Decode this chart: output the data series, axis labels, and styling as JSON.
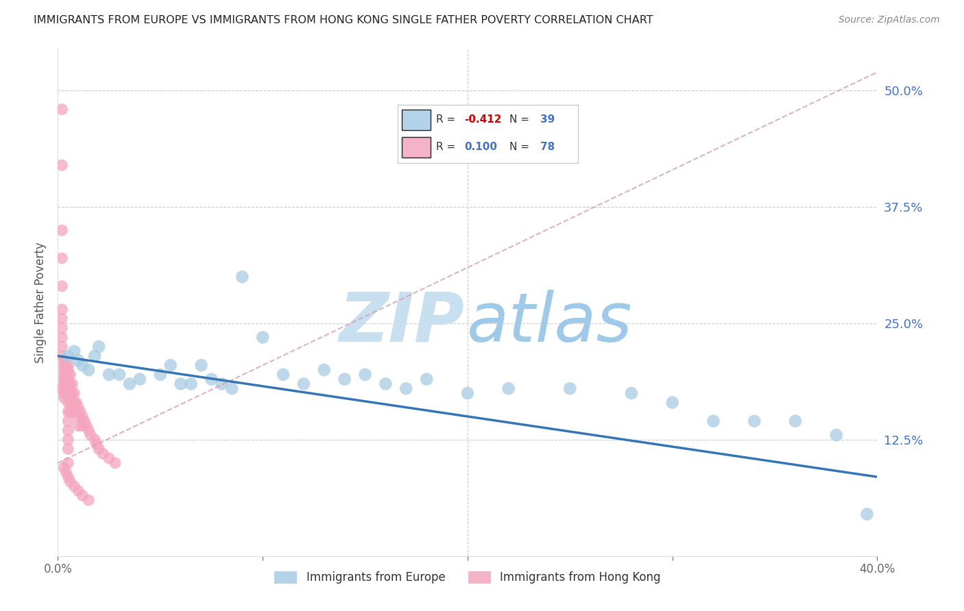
{
  "title": "IMMIGRANTS FROM EUROPE VS IMMIGRANTS FROM HONG KONG SINGLE FATHER POVERTY CORRELATION CHART",
  "source": "Source: ZipAtlas.com",
  "ylabel": "Single Father Poverty",
  "ytick_labels": [
    "50.0%",
    "37.5%",
    "25.0%",
    "12.5%"
  ],
  "ytick_values": [
    0.5,
    0.375,
    0.25,
    0.125
  ],
  "xlim": [
    0.0,
    0.4
  ],
  "ylim": [
    0.0,
    0.545
  ],
  "legend_r_blue": "-0.412",
  "legend_n_blue": "39",
  "legend_r_pink": "0.100",
  "legend_n_pink": "78",
  "blue_color": "#a8cce4",
  "pink_color": "#f4a6be",
  "trend_blue_color": "#3575b5",
  "trend_pink_color": "#e8a0b0",
  "label_blue": "Immigrants from Europe",
  "label_pink": "Immigrants from Hong Kong",
  "blue_x": [
    0.005,
    0.008,
    0.01,
    0.012,
    0.015,
    0.018,
    0.02,
    0.025,
    0.03,
    0.035,
    0.04,
    0.05,
    0.055,
    0.06,
    0.065,
    0.07,
    0.075,
    0.08,
    0.085,
    0.09,
    0.1,
    0.11,
    0.12,
    0.13,
    0.14,
    0.15,
    0.16,
    0.17,
    0.18,
    0.2,
    0.22,
    0.25,
    0.28,
    0.3,
    0.32,
    0.34,
    0.36,
    0.38,
    0.395
  ],
  "blue_y": [
    0.215,
    0.22,
    0.21,
    0.205,
    0.2,
    0.215,
    0.225,
    0.195,
    0.195,
    0.185,
    0.19,
    0.195,
    0.205,
    0.185,
    0.185,
    0.205,
    0.19,
    0.185,
    0.18,
    0.3,
    0.235,
    0.195,
    0.185,
    0.2,
    0.19,
    0.195,
    0.185,
    0.18,
    0.19,
    0.175,
    0.18,
    0.18,
    0.175,
    0.165,
    0.145,
    0.145,
    0.145,
    0.13,
    0.045
  ],
  "pink_x": [
    0.002,
    0.002,
    0.002,
    0.002,
    0.002,
    0.002,
    0.002,
    0.002,
    0.002,
    0.002,
    0.002,
    0.002,
    0.003,
    0.003,
    0.003,
    0.003,
    0.003,
    0.003,
    0.003,
    0.003,
    0.004,
    0.004,
    0.004,
    0.004,
    0.004,
    0.004,
    0.004,
    0.005,
    0.005,
    0.005,
    0.005,
    0.005,
    0.005,
    0.005,
    0.005,
    0.005,
    0.005,
    0.005,
    0.005,
    0.005,
    0.006,
    0.006,
    0.006,
    0.006,
    0.006,
    0.007,
    0.007,
    0.007,
    0.007,
    0.008,
    0.008,
    0.008,
    0.009,
    0.009,
    0.01,
    0.01,
    0.01,
    0.011,
    0.012,
    0.012,
    0.013,
    0.014,
    0.015,
    0.016,
    0.018,
    0.019,
    0.02,
    0.022,
    0.025,
    0.028,
    0.003,
    0.004,
    0.005,
    0.006,
    0.008,
    0.01,
    0.012,
    0.015
  ],
  "pink_y": [
    0.48,
    0.42,
    0.35,
    0.32,
    0.29,
    0.265,
    0.255,
    0.245,
    0.235,
    0.225,
    0.215,
    0.18,
    0.21,
    0.205,
    0.2,
    0.195,
    0.19,
    0.185,
    0.175,
    0.17,
    0.205,
    0.2,
    0.195,
    0.19,
    0.185,
    0.18,
    0.175,
    0.205,
    0.2,
    0.195,
    0.19,
    0.185,
    0.175,
    0.165,
    0.155,
    0.145,
    0.135,
    0.125,
    0.115,
    0.1,
    0.195,
    0.185,
    0.175,
    0.165,
    0.155,
    0.185,
    0.175,
    0.165,
    0.155,
    0.175,
    0.165,
    0.155,
    0.165,
    0.155,
    0.16,
    0.15,
    0.14,
    0.155,
    0.15,
    0.14,
    0.145,
    0.14,
    0.135,
    0.13,
    0.125,
    0.12,
    0.115,
    0.11,
    0.105,
    0.1,
    0.095,
    0.09,
    0.085,
    0.08,
    0.075,
    0.07,
    0.065,
    0.06
  ],
  "blue_trend_x0": 0.0,
  "blue_trend_x1": 0.4,
  "blue_trend_y0": 0.215,
  "blue_trend_y1": 0.085,
  "pink_trend_x0": 0.0,
  "pink_trend_x1": 0.4,
  "pink_trend_y0": 0.1,
  "pink_trend_y1": 0.52
}
